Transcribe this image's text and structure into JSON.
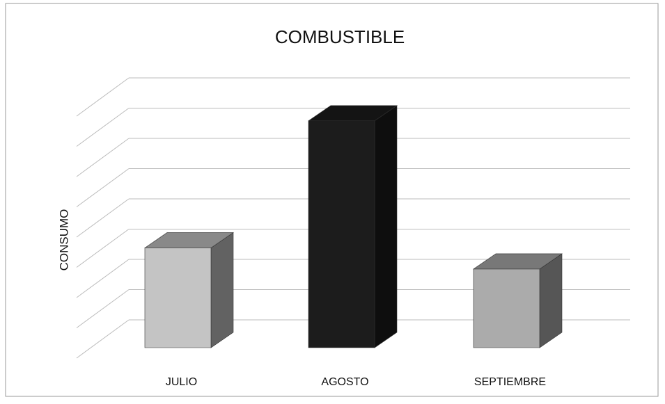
{
  "chart_data": {
    "type": "bar3d",
    "title": "COMBUSTIBLE",
    "y_label": "CONSUMO",
    "categories": [
      "JULIO",
      "AGOSTO",
      "SEPTIEMBRE"
    ],
    "values": [
      3.3,
      7.5,
      2.6
    ],
    "colors": [
      "#c4c4c4",
      "#1c1c1c",
      "#ababab"
    ],
    "ylim": [
      0,
      8
    ],
    "yticks": [
      0,
      1,
      2,
      3,
      4,
      5,
      6,
      7,
      8
    ],
    "grid": true
  }
}
